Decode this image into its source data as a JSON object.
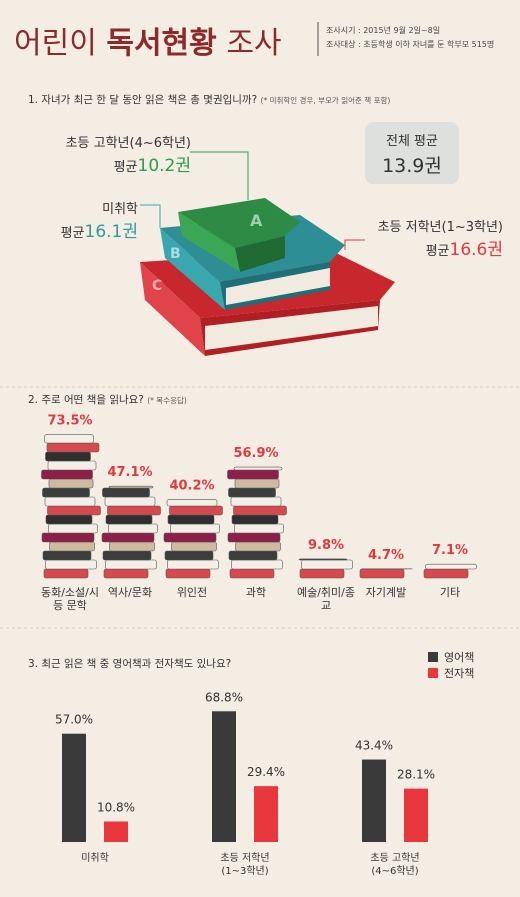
{
  "header": {
    "title_parts": [
      "어린이",
      "독서현황",
      "조사"
    ],
    "info": [
      "조사시기 : 2015년 9월 2일~8일",
      "조사대상 : 초등학생 이하 자녀를 둔 학부모 515명"
    ]
  },
  "section1": {
    "question": "1. 자녀가 최근 한 달 동안 읽은 책은 총 몇권입니까?",
    "note": "(* 미취학인 경우, 부모가 읽어준 책 포함)",
    "groups": [
      {
        "name": "초등 고학년(4~6학년)",
        "avg_label": "평균",
        "avg": "10.2권"
      },
      {
        "name": "미취학",
        "avg_label": "평균",
        "avg": "16.1권"
      },
      {
        "name": "초등 저학년(1~3학년)",
        "avg_label": "평균",
        "avg": "16.6권"
      }
    ],
    "total": {
      "name": "전체 평균",
      "avg": "13.9권"
    },
    "book_letters": [
      "A",
      "B",
      "C"
    ]
  },
  "chart_data": [
    {
      "type": "bookstack",
      "title": "2. 주로 어떤 책을 읽나요?",
      "note": "(* 복수응답)",
      "categories": [
        "동화/소설/시 등 문학",
        "역사/문화",
        "위인전",
        "과학",
        "예술/취미/종교",
        "자기계발",
        "기타"
      ],
      "values": [
        73.5,
        47.1,
        40.2,
        56.9,
        9.8,
        4.7,
        7.1
      ],
      "value_labels": [
        "73.5%",
        "47.1%",
        "40.2%",
        "56.9%",
        "9.8%",
        "4.7%",
        "7.1%"
      ],
      "label_color": "#e03a3e"
    },
    {
      "type": "bar",
      "title": "3. 최근 읽은 책 중 영어책과 전자책도 있나요?",
      "categories": [
        "미취학",
        "초등 저학년 (1~3학년)",
        "초등 고학년 (4~6학년)"
      ],
      "series": [
        {
          "name": "영어책",
          "color": "#3a3a3a",
          "values": [
            57.0,
            68.8,
            43.4
          ],
          "value_labels": [
            "57.0%",
            "68.8%",
            "43.4%"
          ]
        },
        {
          "name": "전자책",
          "color": "#e8383d",
          "values": [
            10.8,
            29.4,
            28.1
          ],
          "value_labels": [
            "10.8%",
            "29.4%",
            "28.1%"
          ]
        }
      ],
      "legend": "top-right"
    }
  ]
}
